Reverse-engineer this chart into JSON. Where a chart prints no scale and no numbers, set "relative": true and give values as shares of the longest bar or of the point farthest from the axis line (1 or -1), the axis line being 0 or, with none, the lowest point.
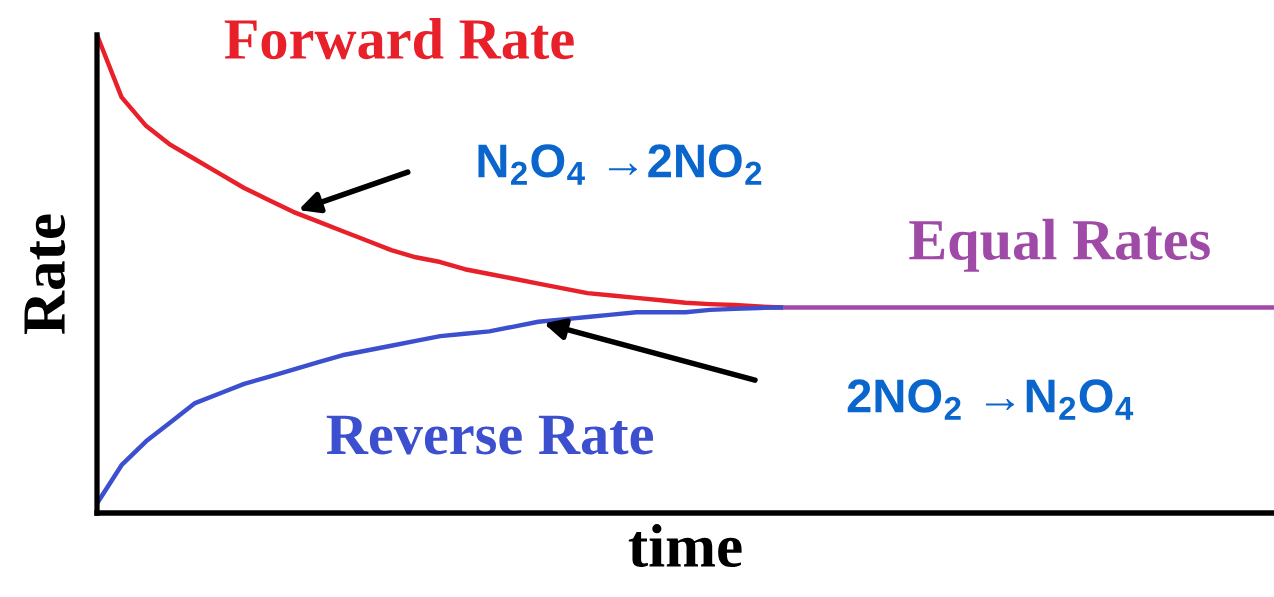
{
  "chart_data": {
    "type": "line",
    "relative": true,
    "xlabel": "time",
    "ylabel": "Rate",
    "categories": [
      null,
      null,
      null,
      null,
      null,
      null,
      null,
      null,
      null,
      null,
      null,
      null,
      null,
      null,
      null,
      null,
      null,
      null,
      null,
      null,
      null,
      null,
      null,
      null,
      null,
      null,
      null,
      null,
      null,
      null,
      null,
      null,
      null,
      null,
      null,
      null,
      null,
      null,
      null,
      null,
      null,
      null,
      null,
      null,
      null,
      null,
      null,
      null,
      null
    ],
    "series": [
      {
        "name": "Forward Rate",
        "color": "#e8202a",
        "values": [
          1.0,
          0.87,
          0.81,
          0.77,
          0.74,
          0.71,
          0.68,
          0.655,
          0.63,
          0.61,
          0.59,
          0.57,
          0.55,
          0.535,
          0.525,
          0.51,
          0.5,
          0.49,
          0.48,
          0.47,
          0.46,
          0.455,
          0.45,
          0.445,
          0.44,
          0.437,
          0.435,
          0.432,
          0.43,
          null,
          null,
          null,
          null,
          null,
          null,
          null,
          null,
          null,
          null,
          null,
          null,
          null,
          null,
          null,
          null,
          null,
          null,
          null,
          null
        ]
      },
      {
        "name": "Reverse Rate",
        "color": "#3c4fcf",
        "values": [
          0.02,
          0.1,
          0.15,
          0.19,
          0.23,
          0.25,
          0.27,
          0.285,
          0.3,
          0.315,
          0.33,
          0.34,
          0.35,
          0.36,
          0.37,
          0.375,
          0.38,
          0.39,
          0.4,
          0.405,
          0.41,
          0.415,
          0.42,
          0.42,
          0.42,
          0.425,
          0.427,
          0.429,
          0.43,
          null,
          null,
          null,
          null,
          null,
          null,
          null,
          null,
          null,
          null,
          null,
          null,
          null,
          null,
          null,
          null,
          null,
          null,
          null,
          null
        ]
      },
      {
        "name": "Equal Rates",
        "color": "#a04aa8",
        "values": [
          null,
          null,
          null,
          null,
          null,
          null,
          null,
          null,
          null,
          null,
          null,
          null,
          null,
          null,
          null,
          null,
          null,
          null,
          null,
          null,
          null,
          null,
          null,
          null,
          null,
          null,
          null,
          null,
          0.43,
          0.43,
          0.43,
          0.43,
          0.43,
          0.43,
          0.43,
          0.43,
          0.43,
          0.43,
          0.43,
          0.43,
          0.43,
          0.43,
          0.43,
          0.43,
          0.43,
          0.43,
          0.43,
          0.43,
          0.43
        ]
      }
    ],
    "annotations": [
      "N$_{2}$O$_{4}$ →2NO$_{2}$",
      "2NO$_{2}$ →N$_{2}$O$_{4}$"
    ],
    "line_style": "solid",
    "marker": "none",
    "legend": false
  }
}
